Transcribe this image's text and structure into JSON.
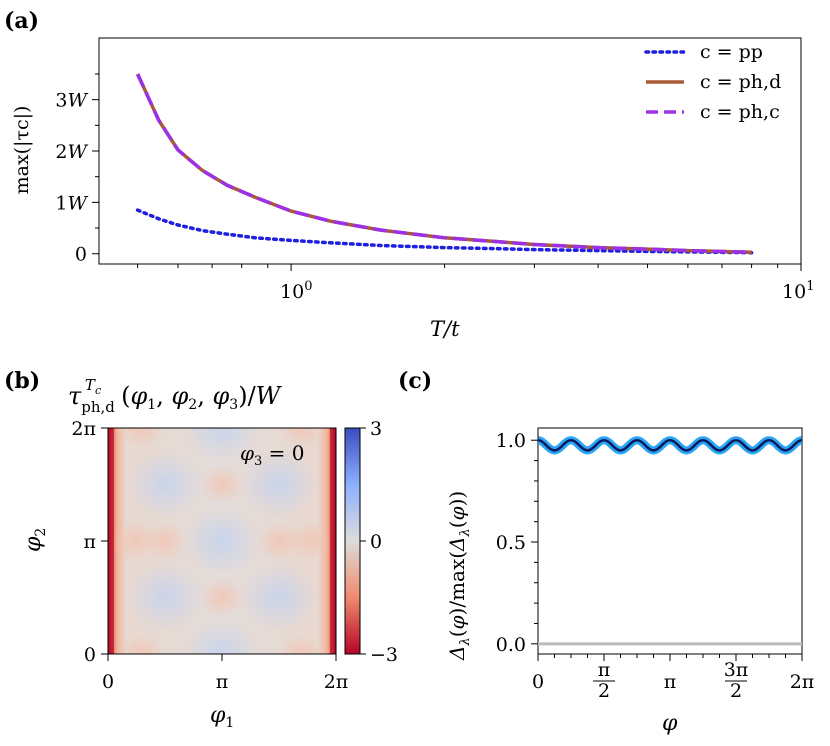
{
  "panels": {
    "a": {
      "label": "(a)"
    },
    "b": {
      "label": "(b)"
    },
    "c": {
      "label": "(c)"
    }
  },
  "chart_data": [
    {
      "id": "a",
      "type": "line",
      "title": "",
      "xlabel": "T/t",
      "ylabel": "max(|τc|)",
      "xscale": "log",
      "xlim": [
        0.42,
        10
      ],
      "ylim": [
        -0.2,
        4.2
      ],
      "xticks": [
        {
          "value": 1,
          "label": "10^0"
        },
        {
          "value": 10,
          "label": "10^1"
        }
      ],
      "yticks": [
        {
          "value": 0,
          "label": "0"
        },
        {
          "value": 1,
          "label": "1W"
        },
        {
          "value": 2,
          "label": "2W"
        },
        {
          "value": 3,
          "label": "3W"
        }
      ],
      "legend_position": "top-right",
      "series": [
        {
          "name": "c = pp",
          "style": "dotted",
          "color": "#1f1fdf",
          "x": [
            0.5,
            0.55,
            0.6,
            0.67,
            0.75,
            0.85,
            1.0,
            1.2,
            1.5,
            2.0,
            2.5,
            3.0,
            4.0,
            5.0,
            6.0,
            8.0
          ],
          "y": [
            0.85,
            0.68,
            0.56,
            0.45,
            0.38,
            0.31,
            0.26,
            0.21,
            0.16,
            0.12,
            0.1,
            0.08,
            0.06,
            0.045,
            0.035,
            0.02
          ]
        },
        {
          "name": "c = ph,d",
          "style": "solid",
          "color": "#a85a38",
          "x": [
            0.5,
            0.55,
            0.6,
            0.67,
            0.75,
            0.85,
            1.0,
            1.2,
            1.5,
            2.0,
            2.5,
            3.0,
            4.0,
            5.0,
            6.0,
            8.0
          ],
          "y": [
            3.5,
            2.6,
            2.02,
            1.62,
            1.33,
            1.1,
            0.83,
            0.63,
            0.46,
            0.31,
            0.24,
            0.18,
            0.12,
            0.09,
            0.06,
            0.03
          ]
        },
        {
          "name": "c = ph,c",
          "style": "dashed",
          "color": "#9b30e8",
          "x": [
            0.5,
            0.55,
            0.6,
            0.67,
            0.75,
            0.85,
            1.0,
            1.2,
            1.5,
            2.0,
            2.5,
            3.0,
            4.0,
            5.0,
            6.0,
            8.0
          ],
          "y": [
            3.5,
            2.6,
            2.02,
            1.62,
            1.33,
            1.1,
            0.83,
            0.63,
            0.46,
            0.31,
            0.24,
            0.18,
            0.12,
            0.09,
            0.06,
            0.03
          ]
        }
      ]
    },
    {
      "id": "b",
      "type": "heatmap",
      "title": "τph,d^Tc(φ1, φ2, φ3)/W",
      "annotation": "φ3 = 0",
      "xlabel": "φ1",
      "ylabel": "φ2",
      "xticks": [
        "0",
        "π",
        "2π"
      ],
      "yticks": [
        "0",
        "π",
        "2π"
      ],
      "colorbar": {
        "min": -3,
        "max": 3,
        "ticks": [
          "3",
          "0",
          "−3"
        ],
        "colormap": "coolwarm"
      }
    },
    {
      "id": "c",
      "type": "line",
      "title": "",
      "xlabel": "φ",
      "ylabel": "Δλ(φ)/max(Δλ(φ))",
      "xlim": [
        0,
        6.283
      ],
      "ylim": [
        -0.05,
        1.06
      ],
      "xticks": [
        "0",
        "π/2",
        "π",
        "3π/2",
        "2π"
      ],
      "yticks": [
        "0.0",
        "0.5",
        "1.0"
      ],
      "series": [
        {
          "name": "Δλ",
          "color": "#2aa5f5",
          "mean": 0.975,
          "amplitude": 0.025,
          "periods": 8
        },
        {
          "name": "zero",
          "color": "#bbbbbb",
          "value": 0.0
        }
      ]
    }
  ]
}
